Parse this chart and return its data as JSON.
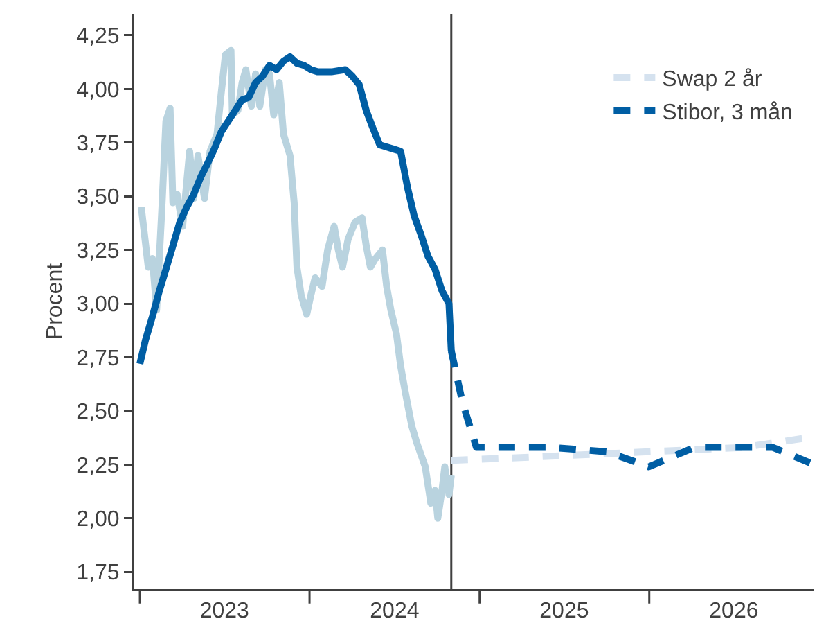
{
  "chart_data": {
    "type": "line",
    "ylabel": "Procent",
    "legend": "top right",
    "grid": false,
    "xlim": [
      "2022-12-20",
      "2026-12-22"
    ],
    "xticks": [
      {
        "value": "2023-01-01",
        "label": null
      },
      {
        "value": "2023-07-02",
        "label": "2023"
      },
      {
        "value": "2024-01-01",
        "label": null
      },
      {
        "value": "2024-07-02",
        "label": "2024"
      },
      {
        "value": "2025-01-01",
        "label": null
      },
      {
        "value": "2025-07-02",
        "label": "2025"
      },
      {
        "value": "2026-01-01",
        "label": null
      },
      {
        "value": "2026-07-02",
        "label": "2026"
      }
    ],
    "ylim": [
      1.67,
      4.35
    ],
    "yticks": [
      {
        "value": 1.75,
        "label": "1,75"
      },
      {
        "value": 2,
        "label": "2,00"
      },
      {
        "value": 2.25,
        "label": "2,25"
      },
      {
        "value": 2.5,
        "label": "2,50"
      },
      {
        "value": 2.75,
        "label": "2,75"
      },
      {
        "value": 3,
        "label": "3,00"
      },
      {
        "value": 3.25,
        "label": "3,25"
      },
      {
        "value": 3.5,
        "label": "3,50"
      },
      {
        "value": 3.75,
        "label": "3,75"
      },
      {
        "value": 4,
        "label": "4,00"
      },
      {
        "value": 4.25,
        "label": "4,25"
      }
    ],
    "ref_lines": [
      {
        "axis": "x",
        "value": "2024-11-01",
        "color": "#404040",
        "line_style": "solid"
      }
    ],
    "series": [
      {
        "color": "#b9d3df",
        "line_style": "solid",
        "x": [
          "2023-01-04",
          "2023-01-19",
          "2023-01-28",
          "2023-02-06",
          "2023-02-17",
          "2023-02-26",
          "2023-03-07",
          "2023-03-13",
          "2023-03-22",
          "2023-04-03",
          "2023-04-18",
          "2023-04-27",
          "2023-05-06",
          "2023-05-20",
          "2023-06-01",
          "2023-06-16",
          "2023-06-25",
          "2023-07-04",
          "2023-07-16",
          "2023-07-19",
          "2023-07-31",
          "2023-08-09",
          "2023-08-17",
          "2023-08-29",
          "2023-09-07",
          "2023-09-16",
          "2023-09-28",
          "2023-10-07",
          "2023-10-16",
          "2023-10-28",
          "2023-11-06",
          "2023-11-20",
          "2023-11-29",
          "2023-12-05",
          "2023-12-14",
          "2023-12-26",
          "2024-01-04",
          "2024-01-13",
          "2024-01-28",
          "2024-02-09",
          "2024-02-23",
          "2024-03-03",
          "2024-03-12",
          "2024-03-24",
          "2024-04-08",
          "2024-04-23",
          "2024-05-02",
          "2024-05-11",
          "2024-05-22",
          "2024-06-06",
          "2024-06-15",
          "2024-06-24",
          "2024-07-06",
          "2024-07-15",
          "2024-07-24",
          "2024-08-08",
          "2024-08-19",
          "2024-09-06",
          "2024-09-18",
          "2024-09-27",
          "2024-10-03",
          "2024-10-12",
          "2024-10-18",
          "2024-10-27",
          "2024-11-01"
        ],
        "values": [
          3.45,
          3.17,
          3.21,
          2.97,
          3.43,
          3.85,
          3.91,
          3.47,
          3.51,
          3.36,
          3.71,
          3.49,
          3.69,
          3.49,
          3.71,
          3.79,
          3.98,
          4.16,
          4.18,
          3.88,
          3.9,
          4.03,
          4.09,
          3.92,
          4.07,
          3.92,
          4.09,
          4.07,
          3.88,
          4.03,
          3.79,
          3.69,
          3.47,
          3.17,
          3.04,
          2.95,
          3.04,
          3.12,
          3.08,
          3.25,
          3.36,
          3.25,
          3.17,
          3.3,
          3.38,
          3.4,
          3.27,
          3.17,
          3.21,
          3.25,
          3.08,
          2.97,
          2.86,
          2.71,
          2.6,
          2.43,
          2.35,
          2.24,
          2.07,
          2.13,
          2.0,
          2.13,
          2.24,
          2.11,
          2.2
        ]
      },
      {
        "color": "#005ea4",
        "line_style": "solid",
        "x": [
          "2023-01-01",
          "2023-01-13",
          "2023-01-28",
          "2023-02-12",
          "2023-02-26",
          "2023-03-13",
          "2023-03-28",
          "2023-04-12",
          "2023-04-27",
          "2023-05-12",
          "2023-05-26",
          "2023-06-10",
          "2023-06-25",
          "2023-07-10",
          "2023-07-25",
          "2023-08-09",
          "2023-08-23",
          "2023-09-07",
          "2023-09-22",
          "2023-10-07",
          "2023-10-22",
          "2023-11-06",
          "2023-11-20",
          "2023-12-05",
          "2023-12-20",
          "2024-01-04",
          "2024-01-19",
          "2024-02-17",
          "2024-03-18",
          "2024-04-02",
          "2024-04-17",
          "2024-05-02",
          "2024-05-16",
          "2024-05-31",
          "2024-06-30",
          "2024-07-15",
          "2024-07-30",
          "2024-08-13",
          "2024-08-28",
          "2024-09-12",
          "2024-09-27",
          "2024-10-12",
          "2024-10-27",
          "2024-11-01"
        ],
        "values": [
          2.72,
          2.83,
          2.94,
          3.06,
          3.16,
          3.27,
          3.38,
          3.45,
          3.51,
          3.59,
          3.65,
          3.72,
          3.8,
          3.85,
          3.9,
          3.95,
          3.96,
          4.03,
          4.06,
          4.11,
          4.09,
          4.13,
          4.15,
          4.12,
          4.11,
          4.09,
          4.08,
          4.08,
          4.09,
          4.06,
          4.02,
          3.9,
          3.82,
          3.74,
          3.72,
          3.71,
          3.54,
          3.41,
          3.32,
          3.22,
          3.16,
          3.06,
          3.0,
          2.78
        ]
      },
      {
        "name": "Swap 2 år",
        "color": "#d5e2ef",
        "line_style": "dashed",
        "x": [
          "2024-11-01",
          "2025-03-01",
          "2025-12-31",
          "2026-07-22",
          "2026-12-22"
        ],
        "values": [
          2.27,
          2.28,
          2.31,
          2.33,
          2.38
        ]
      },
      {
        "name": "Stibor, 3 mån",
        "color": "#005ea4",
        "line_style": "dashed",
        "x": [
          "2024-11-01",
          "2024-11-25",
          "2024-12-25",
          "2025-02-07",
          "2025-06-05",
          "2025-10-02",
          "2025-12-31",
          "2026-04-08",
          "2026-09-24",
          "2026-12-22"
        ],
        "values": [
          2.78,
          2.54,
          2.33,
          2.33,
          2.33,
          2.31,
          2.24,
          2.33,
          2.33,
          2.25
        ]
      }
    ]
  }
}
